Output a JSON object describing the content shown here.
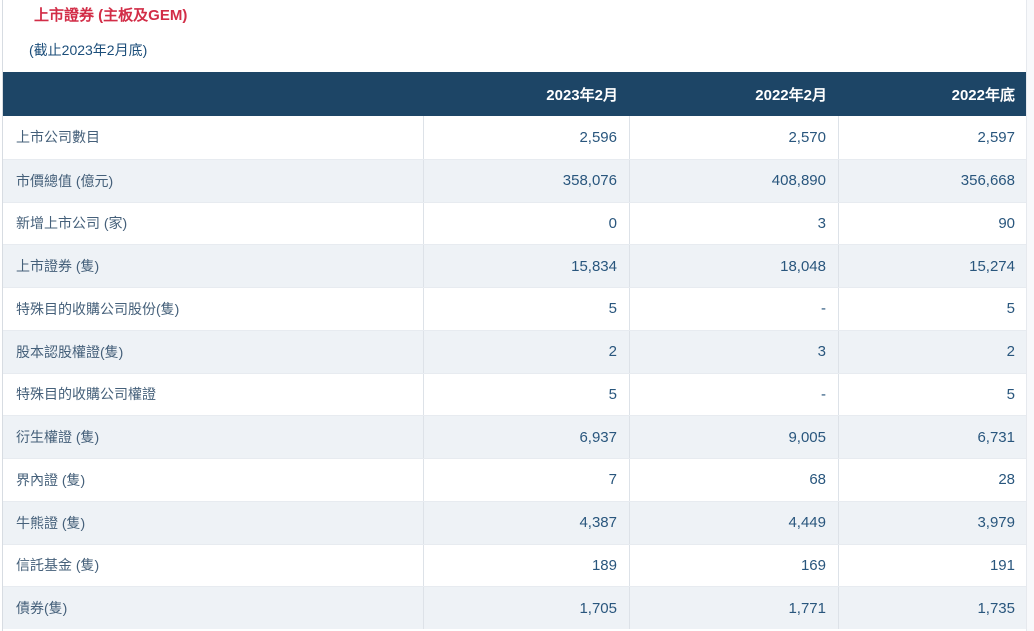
{
  "page": {
    "title": "上市證券 (主板及GEM)",
    "subtitle": "(截止2023年2月底)"
  },
  "colors": {
    "title_red": "#d22d47",
    "header_navy": "#1d4566",
    "row_alt": "#eef2f6",
    "label_text": "#45607a",
    "value_text": "#29567d"
  },
  "table": {
    "columns": [
      "2023年2月",
      "2022年2月",
      "2022年底"
    ],
    "rows": [
      {
        "label": "上市公司數目",
        "values": [
          "2,596",
          "2,570",
          "2,597"
        ]
      },
      {
        "label": "市價總值 (億元)",
        "values": [
          "358,076",
          "408,890",
          "356,668"
        ]
      },
      {
        "label": "新增上市公司 (家)",
        "values": [
          "0",
          "3",
          "90"
        ]
      },
      {
        "label": "上市證券 (隻)",
        "values": [
          "15,834",
          "18,048",
          "15,274"
        ]
      },
      {
        "label": "特殊目的收購公司股份(隻)",
        "values": [
          "5",
          "-",
          "5"
        ]
      },
      {
        "label": "股本認股權證(隻)",
        "values": [
          "2",
          "3",
          "2"
        ]
      },
      {
        "label": "特殊目的收購公司權證",
        "values": [
          "5",
          "-",
          "5"
        ]
      },
      {
        "label": "衍生權證 (隻)",
        "values": [
          "6,937",
          "9,005",
          "6,731"
        ]
      },
      {
        "label": "界內證 (隻)",
        "values": [
          "7",
          "68",
          "28"
        ]
      },
      {
        "label": "牛熊證 (隻)",
        "values": [
          "4,387",
          "4,449",
          "3,979"
        ]
      },
      {
        "label": "信託基金 (隻)",
        "values": [
          "189",
          "169",
          "191"
        ]
      },
      {
        "label": "債券(隻)",
        "values": [
          "1,705",
          "1,771",
          "1,735"
        ]
      }
    ]
  }
}
